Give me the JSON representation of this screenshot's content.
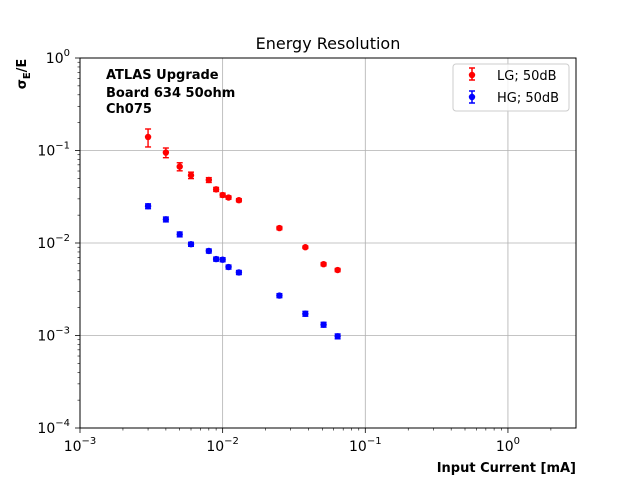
{
  "chart_data": {
    "type": "scatter",
    "title": "Energy Resolution",
    "xlabel": "Input Current [mA]",
    "ylabel": "σ_E/E",
    "xscale": "log",
    "yscale": "log",
    "xlim": [
      0.001,
      3
    ],
    "ylim": [
      0.0001,
      1
    ],
    "grid": true,
    "legend_position": "top-right",
    "x_ticks": [
      {
        "value": 0.001,
        "base": "10",
        "exp": "−3"
      },
      {
        "value": 0.01,
        "base": "10",
        "exp": "−2"
      },
      {
        "value": 0.1,
        "base": "10",
        "exp": "−1"
      },
      {
        "value": 1,
        "base": "10",
        "exp": "0"
      }
    ],
    "y_ticks": [
      {
        "value": 0.0001,
        "base": "10",
        "exp": "−4"
      },
      {
        "value": 0.001,
        "base": "10",
        "exp": "−3"
      },
      {
        "value": 0.01,
        "base": "10",
        "exp": "−2"
      },
      {
        "value": 0.1,
        "base": "10",
        "exp": "−1"
      },
      {
        "value": 1,
        "base": "10",
        "exp": "0"
      }
    ],
    "annotations": [
      "ATLAS Upgrade",
      "Board 634 50ohm",
      "Ch075"
    ],
    "series": [
      {
        "name": "LG; 50dB",
        "color": "#ff0000",
        "x": [
          0.003,
          0.004,
          0.005,
          0.006,
          0.008,
          0.009,
          0.01,
          0.011,
          0.013,
          0.025,
          0.038,
          0.051,
          0.064
        ],
        "y": [
          0.14,
          0.095,
          0.067,
          0.054,
          0.048,
          0.038,
          0.033,
          0.031,
          0.029,
          0.0145,
          0.009,
          0.0059,
          0.0051
        ],
        "err": [
          0.22,
          0.12,
          0.1,
          0.08,
          0.06,
          0.05,
          0.05,
          0.04,
          0.04,
          0.04,
          0.03,
          0.04,
          0.04
        ]
      },
      {
        "name": "HG; 50dB",
        "color": "#0000ff",
        "x": [
          0.003,
          0.004,
          0.005,
          0.006,
          0.008,
          0.009,
          0.01,
          0.011,
          0.013,
          0.025,
          0.038,
          0.051,
          0.064
        ],
        "y": [
          0.025,
          0.018,
          0.0124,
          0.0097,
          0.0082,
          0.0067,
          0.0066,
          0.0055,
          0.0048,
          0.0027,
          0.00172,
          0.00131,
          0.00098
        ],
        "err": [
          0.06,
          0.06,
          0.06,
          0.05,
          0.05,
          0.05,
          0.05,
          0.05,
          0.05,
          0.05,
          0.06,
          0.06,
          0.06
        ]
      }
    ]
  }
}
